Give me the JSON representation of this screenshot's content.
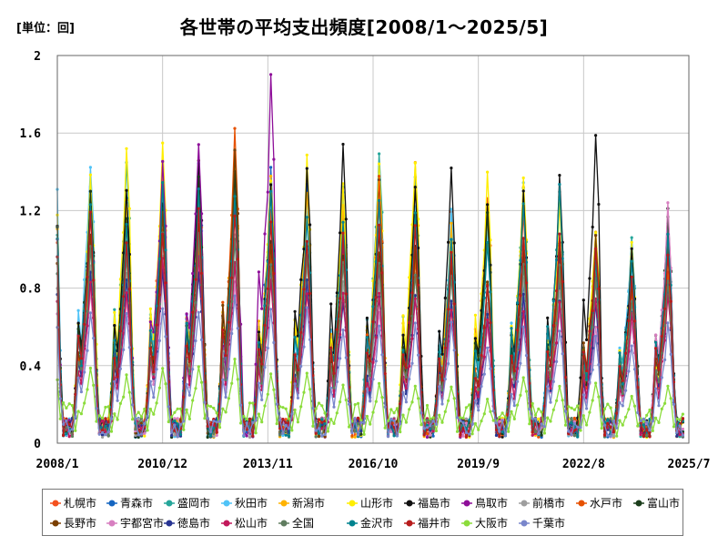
{
  "header": {
    "unit_label": "[単位：回]",
    "title": "各世帯の平均支出頻度[2008/1～2025/5]"
  },
  "chart_data": {
    "type": "line",
    "ylim": [
      0,
      2
    ],
    "y_ticks": [
      "0",
      "0.4",
      "0.8",
      "1.2",
      "1.6",
      "2"
    ],
    "x_ticks": [
      "2008/1",
      "2010/12",
      "2013/11",
      "2016/10",
      "2019/9",
      "2022/8",
      "2025/7"
    ],
    "x_start": "2008/1",
    "x_end": "2025/7",
    "grid": true,
    "legend_position": "bottom",
    "seasonal_peak_month": "Dec",
    "approx_peak_values": [
      1.35,
      1.45,
      1.5,
      1.55,
      1.65,
      1.45,
      1.5,
      1.35,
      1.45,
      1.38,
      1.3,
      1.33,
      1.35,
      1.45,
      1.05,
      1.1,
      1.05
    ],
    "approx_trough_value": 0.05,
    "series": [
      {
        "name": "札幌市",
        "color": "#f4511e",
        "peaks": [
          1.2,
          1.05,
          1.45,
          1.3,
          1.45,
          1.2,
          1.2,
          1.3,
          1.25,
          1.02,
          1.15,
          1.3,
          1.15,
          1.0,
          0.9,
          0.95,
          0.95
        ]
      },
      {
        "name": "青森市",
        "color": "#1565c0",
        "peaks": [
          1.1,
          1.3,
          1.35,
          1.45,
          1.35,
          1.4,
          1.35,
          1.15,
          1.1,
          0.98,
          1.0,
          1.05,
          0.85,
          0.85,
          0.85,
          0.95,
          0.85
        ]
      },
      {
        "name": "盛岡市",
        "color": "#26a69a",
        "peaks": [
          1.3,
          1.45,
          1.25,
          1.3,
          1.3,
          1.35,
          1.25,
          1.3,
          1.55,
          1.4,
          1.1,
          1.1,
          1.35,
          1.35,
          1.05,
          1.08,
          1.12
        ]
      },
      {
        "name": "秋田市",
        "color": "#4fc3f7",
        "peaks": [
          1.48,
          1.25,
          1.45,
          1.4,
          1.35,
          1.3,
          1.2,
          1.3,
          1.35,
          1.25,
          1.22,
          1.1,
          1.3,
          1.3,
          0.95,
          1.05,
          1.0
        ]
      },
      {
        "name": "新潟市",
        "color": "#ffb300",
        "peaks": [
          1.25,
          1.3,
          1.4,
          1.45,
          1.45,
          1.35,
          1.3,
          1.2,
          1.3,
          1.45,
          1.1,
          1.15,
          1.33,
          1.25,
          1.1,
          0.95,
          0.9
        ]
      },
      {
        "name": "山形市",
        "color": "#ffee00",
        "peaks": [
          1.35,
          1.55,
          1.5,
          1.35,
          1.45,
          1.4,
          1.45,
          1.3,
          1.45,
          1.5,
          1.05,
          1.35,
          1.35,
          1.25,
          1.12,
          1.0,
          0.95
        ]
      },
      {
        "name": "福島市",
        "color": "#111111",
        "peaks": [
          1.3,
          1.3,
          1.2,
          1.45,
          1.55,
          1.35,
          1.44,
          1.5,
          1.35,
          1.3,
          1.38,
          1.2,
          1.3,
          1.4,
          1.6,
          1.0,
          1.2
        ]
      },
      {
        "name": "鳥取市",
        "color": "#8e0e99",
        "peaks": [
          1.2,
          1.0,
          1.5,
          1.6,
          1.2,
          1.87,
          1.0,
          1.0,
          0.9,
          0.95,
          0.9,
          0.7,
          0.95,
          0.95,
          0.85,
          0.7,
          0.85
        ]
      },
      {
        "name": "前橋市",
        "color": "#9e9e9e",
        "peaks": [
          0.95,
          0.9,
          1.0,
          1.05,
          1.05,
          0.95,
          0.95,
          0.85,
          0.85,
          0.85,
          0.85,
          0.75,
          0.85,
          0.8,
          0.75,
          0.7,
          0.8
        ]
      },
      {
        "name": "水戸市",
        "color": "#e65100",
        "peaks": [
          1.05,
          1.0,
          1.1,
          1.05,
          1.6,
          1.0,
          0.95,
          0.95,
          1.35,
          0.95,
          0.9,
          0.8,
          0.95,
          0.9,
          0.85,
          0.8,
          0.85
        ]
      },
      {
        "name": "富山市",
        "color": "#1b3d1b",
        "peaks": [
          1.3,
          1.2,
          1.2,
          1.35,
          1.35,
          1.05,
          1.0,
          1.0,
          1.1,
          1.05,
          0.9,
          1.15,
          1.05,
          1.05,
          0.95,
          0.85,
          1.2
        ]
      },
      {
        "name": "長野市",
        "color": "#7b3f00",
        "peaks": [
          1.1,
          1.05,
          1.15,
          1.1,
          1.5,
          1.05,
          1.0,
          0.95,
          1.0,
          1.0,
          0.95,
          0.85,
          1.0,
          1.0,
          1.07,
          0.85,
          1.0
        ]
      },
      {
        "name": "宇都宮市",
        "color": "#d77fc0",
        "peaks": [
          0.8,
          0.75,
          0.85,
          0.9,
          0.85,
          0.85,
          0.8,
          0.75,
          0.7,
          0.75,
          0.7,
          0.6,
          0.7,
          0.7,
          0.6,
          0.6,
          1.22
        ]
      },
      {
        "name": "徳島市",
        "color": "#283593",
        "peaks": [
          0.9,
          0.85,
          0.9,
          0.9,
          0.95,
          0.9,
          0.85,
          0.75,
          0.75,
          0.75,
          0.75,
          0.65,
          0.75,
          0.75,
          0.7,
          0.65,
          0.8
        ]
      },
      {
        "name": "松山市",
        "color": "#c2185b",
        "peaks": [
          0.85,
          0.8,
          0.95,
          0.95,
          0.9,
          0.85,
          0.8,
          0.75,
          0.75,
          0.75,
          0.7,
          0.65,
          0.7,
          0.75,
          0.75,
          0.65,
          0.75
        ]
      },
      {
        "name": "全国",
        "color": "#607d60",
        "peaks": [
          1.0,
          0.95,
          1.05,
          1.05,
          1.05,
          0.95,
          0.95,
          0.9,
          0.95,
          0.9,
          0.85,
          0.8,
          0.9,
          0.9,
          0.85,
          0.75,
          0.85
        ]
      },
      {
        "name": "金沢市",
        "color": "#00838f",
        "peaks": [
          1.2,
          1.1,
          1.3,
          1.3,
          1.3,
          1.25,
          1.2,
          1.15,
          1.25,
          1.15,
          1.05,
          1.0,
          1.25,
          1.3,
          0.95,
          0.95,
          1.1
        ]
      },
      {
        "name": "福井市",
        "color": "#b71c1c",
        "peaks": [
          1.15,
          1.05,
          1.1,
          1.2,
          1.2,
          1.1,
          1.05,
          1.05,
          1.1,
          1.1,
          0.95,
          0.8,
          1.05,
          1.1,
          1.0,
          0.85,
          1.0
        ]
      },
      {
        "name": "大阪市",
        "color": "#8bdc3b",
        "peaks": [
          0.4,
          0.35,
          0.4,
          0.4,
          0.42,
          0.35,
          0.35,
          0.3,
          0.3,
          0.3,
          0.3,
          0.22,
          0.35,
          0.3,
          0.3,
          0.25,
          0.3
        ]
      },
      {
        "name": "千葉市",
        "color": "#7986cb",
        "peaks": [
          0.7,
          0.65,
          0.7,
          0.7,
          0.75,
          0.7,
          0.7,
          0.6,
          0.6,
          0.6,
          0.6,
          0.5,
          0.6,
          0.6,
          0.55,
          0.5,
          0.6
        ]
      }
    ]
  }
}
